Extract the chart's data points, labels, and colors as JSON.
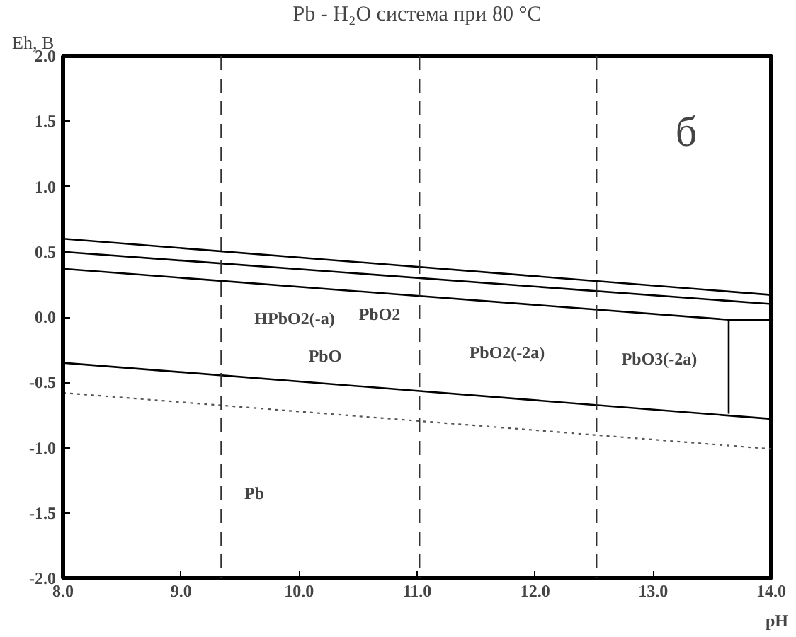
{
  "chart_data": {
    "type": "line",
    "title": "Pb - H₂O система при 80 °C",
    "xlabel": "pH",
    "ylabel": "Eh, B",
    "xlim": [
      8,
      14
    ],
    "ylim": [
      -2,
      2
    ],
    "xticks": [
      {
        "value": 8,
        "label": "8.0"
      },
      {
        "value": 9,
        "label": "9.0"
      },
      {
        "value": 10,
        "label": "10.0"
      },
      {
        "value": 11,
        "label": "11.0"
      },
      {
        "value": 12,
        "label": "12.0"
      },
      {
        "value": 13,
        "label": "13.0"
      },
      {
        "value": 14,
        "label": "14.0"
      }
    ],
    "yticks": [
      {
        "value": -2,
        "label": "-2.0"
      },
      {
        "value": -1.5,
        "label": "-1.5"
      },
      {
        "value": -1,
        "label": "-1.0"
      },
      {
        "value": -0.5,
        "label": "-0.5"
      },
      {
        "value": 0,
        "label": "0.0"
      },
      {
        "value": 0.5,
        "label": "0.5"
      },
      {
        "value": 1,
        "label": "1.0"
      },
      {
        "value": 1.5,
        "label": "1.5"
      },
      {
        "value": 2,
        "label": "2.0"
      }
    ],
    "series": [
      {
        "color": "#000000",
        "line_style": "solid",
        "x": [
          8,
          14
        ],
        "values": [
          0.6,
          0.17
        ]
      },
      {
        "color": "#000000",
        "line_style": "solid",
        "x": [
          8,
          14
        ],
        "values": [
          0.5,
          0.1
        ]
      },
      {
        "color": "#000000",
        "line_style": "solid",
        "x": [
          8,
          13.64,
          14
        ],
        "values": [
          0.37,
          -0.02,
          -0.02
        ]
      },
      {
        "color": "#000000",
        "line_style": "solid",
        "x": [
          13.64,
          13.64
        ],
        "values": [
          -0.02,
          -0.74
        ]
      },
      {
        "color": "#000000",
        "line_style": "solid",
        "x": [
          8,
          14
        ],
        "values": [
          -0.35,
          -0.78
        ]
      },
      {
        "color": "#555555",
        "line_style": "dotted",
        "x": [
          8,
          14
        ],
        "values": [
          -0.58,
          -1.01
        ]
      }
    ],
    "ref_lines": [
      {
        "axis": "x",
        "value": 9.34,
        "color": "#333333",
        "line_style": "dashed"
      },
      {
        "axis": "x",
        "value": 11.02,
        "color": "#333333",
        "line_style": "dashed"
      },
      {
        "axis": "x",
        "value": 12.52,
        "color": "#333333",
        "line_style": "dashed"
      }
    ],
    "annotations": [
      "HPbO2(-a)",
      "PbO2",
      "PbO",
      "PbO2(-2a)",
      "PbO3(-2a)",
      "Pb",
      "б"
    ]
  }
}
